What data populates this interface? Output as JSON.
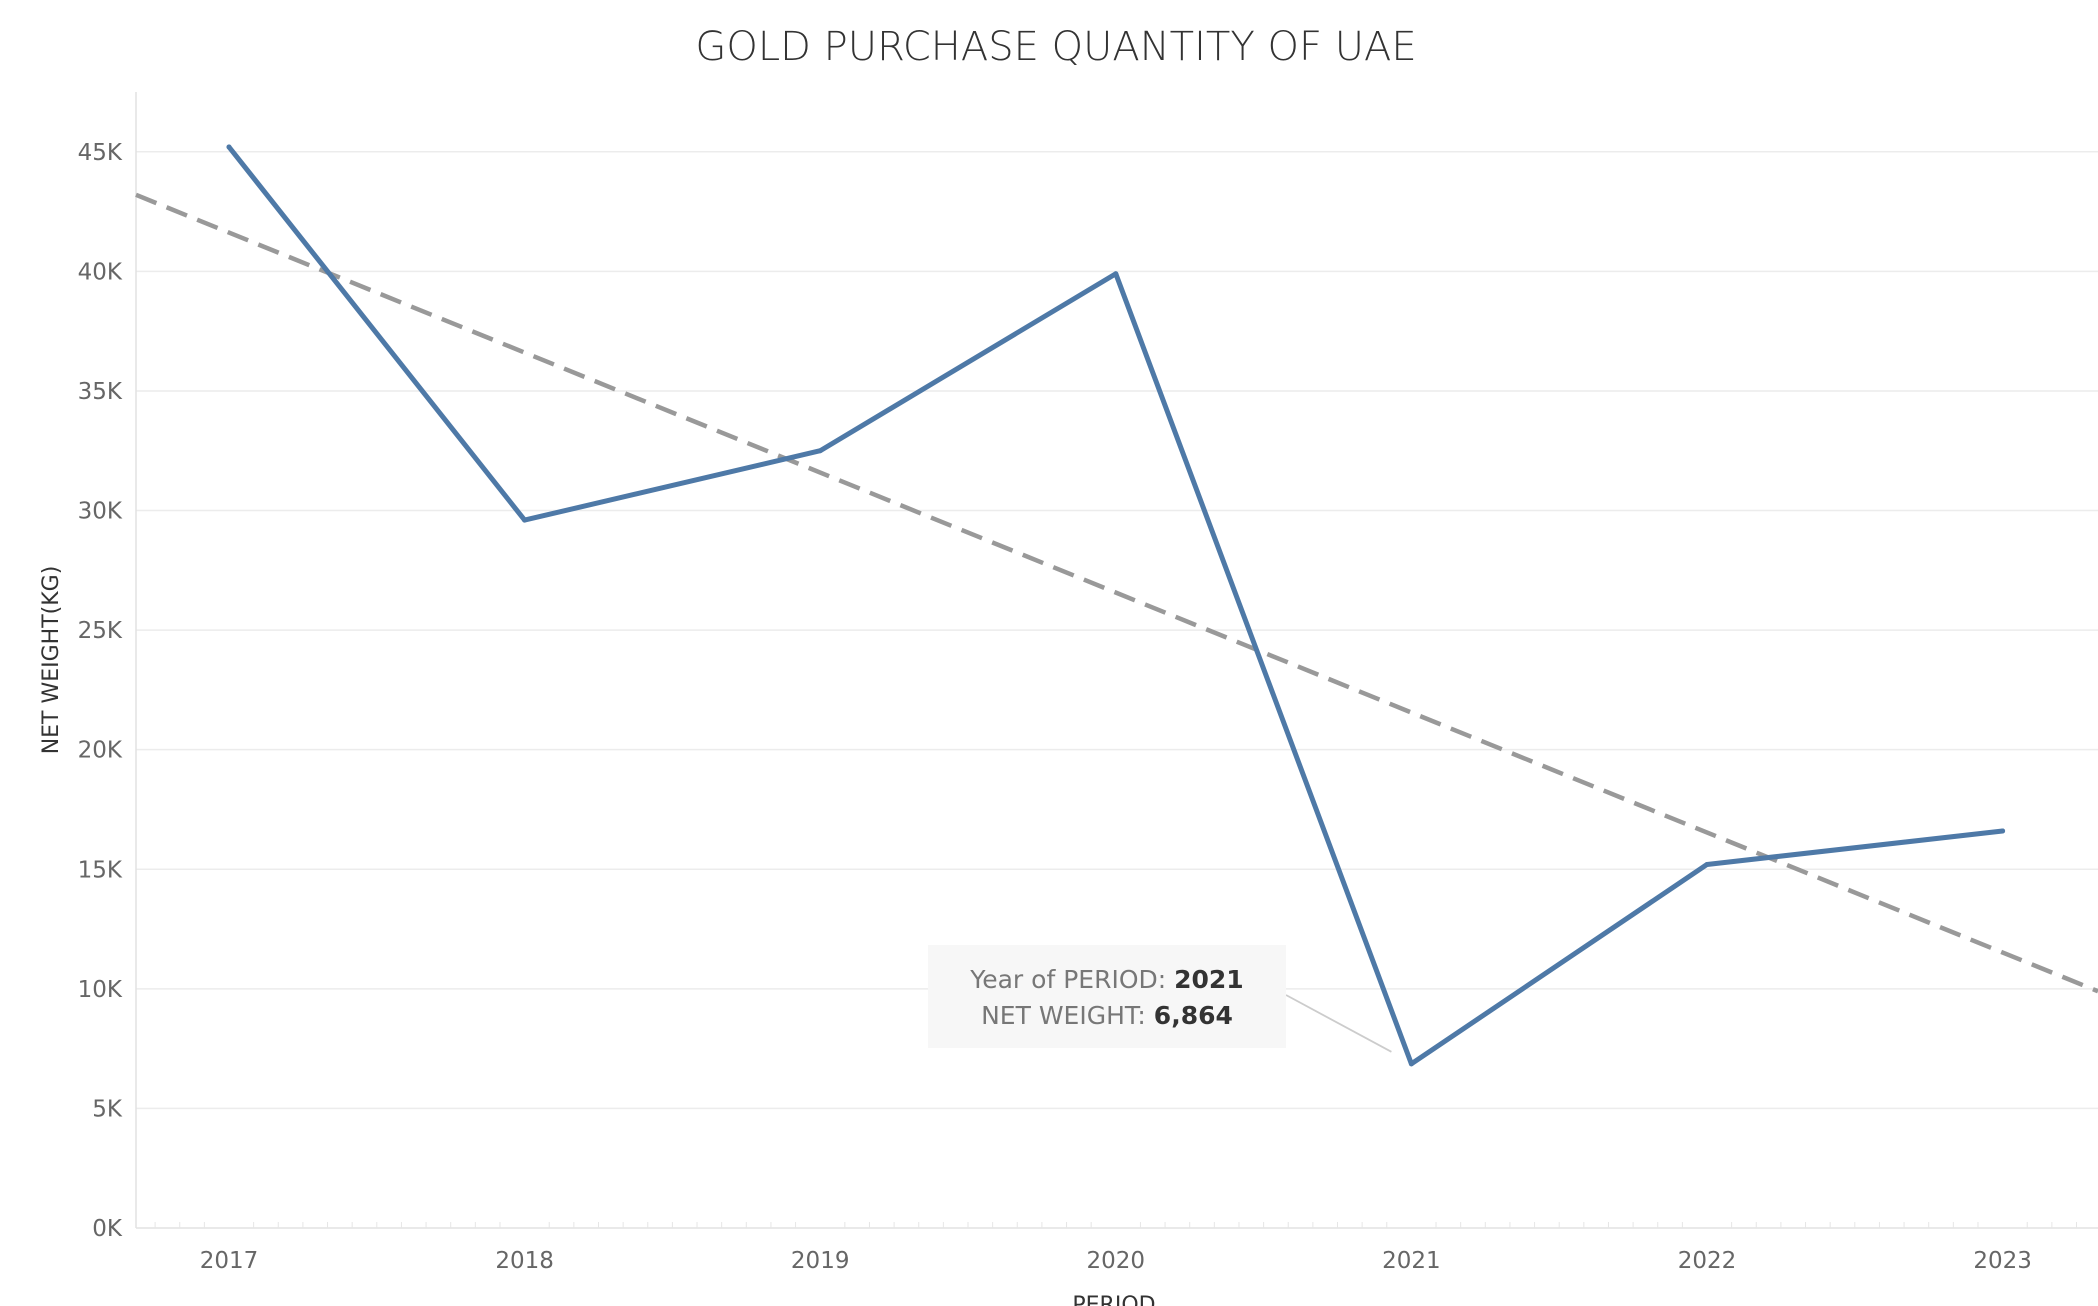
{
  "chart_data": {
    "type": "line",
    "title": "GOLD PURCHASE QUANTITY OF UAE",
    "xlabel": "PERIOD",
    "ylabel": "NET WEIGHT(KG)",
    "x": [
      "2017",
      "2018",
      "2019",
      "2020",
      "2021",
      "2022",
      "2023"
    ],
    "y_ticks": [
      "0K",
      "5K",
      "10K",
      "15K",
      "20K",
      "25K",
      "30K",
      "35K",
      "40K",
      "45K"
    ],
    "ylim": [
      0,
      47500
    ],
    "series": [
      {
        "values": [
          45200,
          29600,
          32500,
          39900,
          6864,
          15200,
          16600
        ],
        "color": "#4e79a7"
      }
    ],
    "trend_line": {
      "start": 43200,
      "end": 9900,
      "style": "dashed",
      "color": "#999999"
    },
    "grid": true,
    "tooltip": {
      "year_label": "Year of PERIOD:",
      "year_value": "2021",
      "weight_label": "NET WEIGHT:",
      "weight_value": "6,864"
    }
  }
}
